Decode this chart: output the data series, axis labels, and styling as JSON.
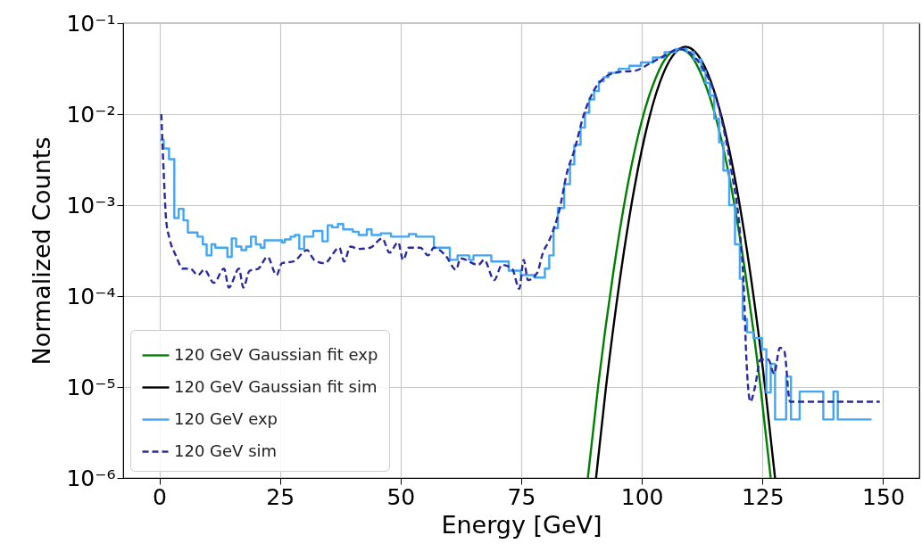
{
  "chart_data": {
    "type": "line",
    "xlabel": "Energy [GeV]",
    "ylabel": "Normalized Counts",
    "log": "y",
    "grid": true,
    "legend": "bottom left",
    "marker": "none",
    "xlim": [
      -7.5,
      157.5
    ],
    "xticks": [
      0,
      25,
      50,
      75,
      100,
      125,
      150
    ],
    "ylim": [
      1e-06,
      0.1
    ],
    "yticks": [
      {
        "value": 1e-06,
        "label": "10⁻⁶"
      },
      {
        "value": 1e-05,
        "label": "10⁻⁵"
      },
      {
        "value": 0.0001,
        "label": "10⁻⁴"
      },
      {
        "value": 0.001,
        "label": "10⁻³"
      },
      {
        "value": 0.01,
        "label": "10⁻²"
      },
      {
        "value": 0.1,
        "label": "10⁻¹"
      }
    ],
    "series": [
      {
        "name": "120 GeV Gaussian fit exp",
        "color": "#008000",
        "line_style": "solid",
        "x": [
          88.8,
          91,
          94,
          97,
          100,
          103,
          105.5,
          107.75,
          110,
          112.5,
          115.5,
          118.5,
          121.5,
          124.5,
          126.7
        ],
        "values": [
          1e-06,
          1.1e-05,
          0.00017,
          0.0016,
          0.0085,
          0.026,
          0.045,
          0.052,
          0.045,
          0.026,
          0.0085,
          0.0016,
          0.00017,
          1.1e-05,
          1e-06
        ]
      },
      {
        "name": "120 GeV Gaussian fit sim",
        "color": "#000000",
        "line_style": "solid",
        "x": [
          90.5,
          92.5,
          95.5,
          98.5,
          101.5,
          104.5,
          107,
          109.05,
          111.1,
          113.6,
          116.6,
          119.6,
          122.6,
          125.6,
          127.6
        ],
        "values": [
          1e-06,
          9.3e-06,
          0.00016,
          0.0016,
          0.009,
          0.0285,
          0.048,
          0.055,
          0.048,
          0.0285,
          0.009,
          0.0016,
          0.00016,
          9.3e-06,
          1e-06
        ]
      },
      {
        "name": "120 GeV exp",
        "type": "step",
        "color": "#42a5f5",
        "line_style": "solid",
        "x": [
          0.2,
          0.9,
          2.0,
          3.1,
          4.0,
          5.0,
          5.9,
          7.9,
          9.0,
          9.8,
          10.8,
          11.6,
          14.1,
          15.0,
          15.9,
          17.0,
          18.0,
          19.0,
          20.0,
          21.0,
          21.8,
          25.4,
          26,
          27.2,
          28.1,
          29.0,
          30.0,
          31.9,
          33.8,
          34.9,
          35.8,
          37.0,
          38.1,
          40.1,
          41.3,
          43.0,
          44.0,
          45.9,
          48,
          51.7,
          53.2,
          56.9,
          60.2,
          61.8,
          64.2,
          65.1,
          68.8,
          72.4,
          74.9,
          77.7,
          79.9,
          80.8,
          81.7,
          82.6,
          83.9,
          85.1,
          86,
          87.3,
          88.2,
          89.1,
          90.1,
          91.1,
          92.1,
          93.1,
          95.2,
          97.4,
          99.8,
          102.3,
          104.7,
          107.1,
          109.3,
          110.8,
          112.3,
          113.2,
          114.1,
          115,
          116,
          116.9,
          118.1,
          119.3,
          120.3,
          120.9,
          121.8,
          123.1,
          124.9,
          125.8,
          126.7,
          127.6,
          129.9,
          130.9,
          132.7,
          137.6,
          139.7,
          140.6,
          143.7,
          147,
          147.6
        ],
        "values": [
          0.0052,
          0.0042,
          0.0032,
          0.00072,
          0.00091,
          0.00068,
          0.0005,
          0.00045,
          0.00037,
          0.00028,
          0.00037,
          0.00034,
          0.00027,
          0.00043,
          0.00035,
          0.00032,
          0.00035,
          0.00045,
          0.00037,
          0.00034,
          0.00041,
          0.00039,
          0.00042,
          0.00045,
          0.00047,
          0.00033,
          0.00045,
          0.00052,
          0.0004,
          0.0006,
          0.00057,
          0.00062,
          0.00054,
          0.00051,
          0.00047,
          0.00054,
          0.00047,
          0.00049,
          0.00045,
          0.00048,
          0.00045,
          0.00034,
          0.00025,
          0.00028,
          0.00025,
          0.00028,
          0.00024,
          0.00019,
          0.00017,
          0.00016,
          0.0002,
          0.00028,
          0.00056,
          0.00093,
          0.0017,
          0.0028,
          0.0046,
          0.0071,
          0.0104,
          0.0145,
          0.018,
          0.023,
          0.0255,
          0.0285,
          0.0315,
          0.034,
          0.037,
          0.042,
          0.048,
          0.052,
          0.048,
          0.04,
          0.03,
          0.022,
          0.016,
          0.0089,
          0.0049,
          0.0024,
          0.001,
          0.00037,
          0.000155,
          5.6e-05,
          4e-05,
          3.45e-05,
          2.6e-05,
          8.7e-06,
          1.8e-05,
          4.4e-06,
          1.3e-05,
          4.4e-06,
          8.9e-06,
          4.4e-06,
          8.9e-06,
          4.4e-06,
          4.4e-06,
          4.4e-06,
          4.4e-06
        ]
      },
      {
        "name": "120 GeV sim",
        "color": "#2a2aa0",
        "line_style": "dashed",
        "x": [
          0.4,
          0.9,
          1.4,
          2.1,
          3.4,
          4.9,
          6.4,
          8.0,
          9.3,
          11.3,
          13.4,
          14.4,
          16.5,
          17.4,
          18.7,
          20.5,
          22.4,
          24.3,
          25.4,
          27.8,
          30.6,
          32.1,
          34.2,
          37.3,
          38.3,
          39.6,
          41.3,
          43.7,
          46.2,
          47.7,
          49.5,
          50.5,
          51.7,
          54.1,
          55.7,
          56.9,
          59.3,
          61.5,
          62.4,
          66.1,
          67.3,
          69.4,
          71.0,
          73.1,
          74.6,
          75.5,
          76.4,
          78.3,
          79.5,
          80.8,
          83,
          84.5,
          86,
          87.9,
          90.0,
          92.4,
          94.9,
          98.6,
          101.6,
          104.7,
          107.7,
          110.8,
          113.2,
          115,
          116.9,
          118.7,
          120.3,
          121.2,
          121.6,
          122.5,
          123.4,
          124.6,
          126.2,
          127.4,
          128.6,
          129.5,
          130.7,
          133.1,
          135.3,
          147.1,
          149.3
        ],
        "values": [
          0.01,
          0.0023,
          0.00069,
          0.00043,
          0.00028,
          0.0002,
          0.0002,
          0.00017,
          0.000195,
          0.00014,
          0.0002,
          0.000124,
          0.0002,
          0.000124,
          0.00019,
          0.0002,
          0.00027,
          0.00017,
          0.00023,
          0.00024,
          0.00032,
          0.00025,
          0.00023,
          0.00034,
          0.00024,
          0.00035,
          0.00033,
          0.00034,
          0.00043,
          0.0003,
          0.00039,
          0.00025,
          0.00034,
          0.00034,
          0.00028,
          0.00034,
          0.00028,
          0.000195,
          0.00026,
          0.00022,
          0.00025,
          0.00015,
          0.00022,
          0.0002,
          0.00012,
          0.00025,
          0.00015,
          0.00018,
          0.0003,
          0.00041,
          0.00093,
          0.0023,
          0.004,
          0.0096,
          0.018,
          0.0255,
          0.029,
          0.03,
          0.036,
          0.044,
          0.052,
          0.043,
          0.0285,
          0.0175,
          0.0071,
          0.00215,
          0.00052,
          0.0001,
          2.4e-05,
          6.9e-06,
          9.8e-06,
          2e-05,
          2e-05,
          1.4e-05,
          2.7e-05,
          2.5e-05,
          6.9e-06,
          6.9e-06,
          6.9e-06,
          6.9e-06,
          6.9e-06
        ]
      }
    ]
  }
}
